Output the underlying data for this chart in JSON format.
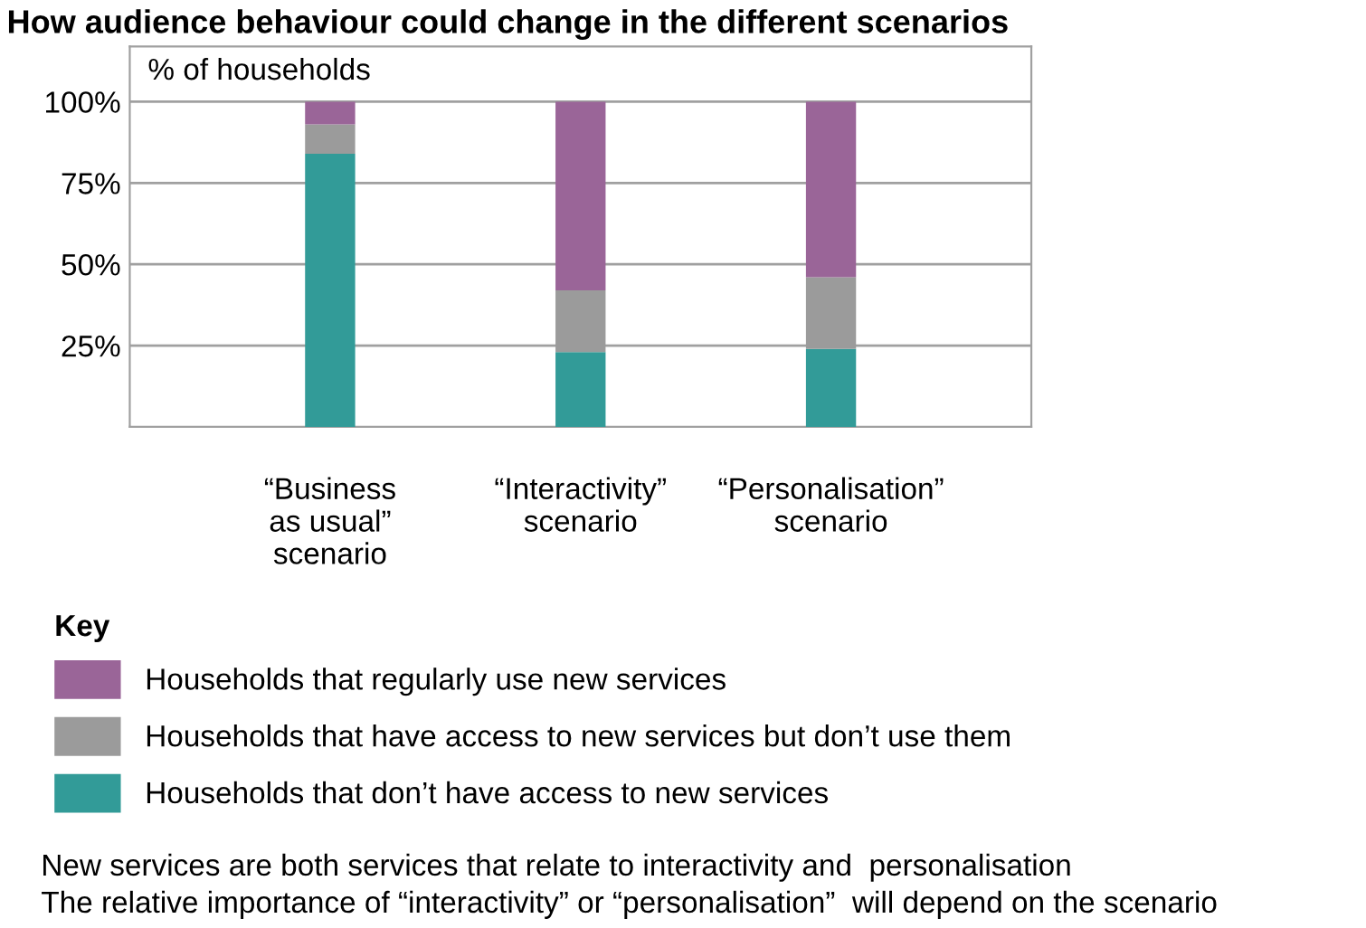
{
  "chart_data": {
    "type": "bar",
    "stacked": true,
    "title": "How audience behaviour could change in the different scenarios",
    "ylabel": "% of households",
    "legend_title": "Key",
    "categories": [
      "“Business\nas usual”\nscenario",
      "“Interactivity”\nscenario",
      "“Personalisation”\nscenario"
    ],
    "series": [
      {
        "name": "Households that don’t have access to new services",
        "color": "#329b98",
        "values": [
          84,
          23,
          24
        ]
      },
      {
        "name": "Households that have access to new services but don’t use them",
        "color": "#9b9b9b",
        "values": [
          9,
          19,
          22
        ]
      },
      {
        "name": "Households that regularly use new services",
        "color": "#9a6598",
        "values": [
          7,
          58,
          54
        ]
      }
    ],
    "ylim": [
      0,
      117
    ],
    "yticks": [
      {
        "value": 25,
        "label": "25%"
      },
      {
        "value": 50,
        "label": "50%"
      },
      {
        "value": 75,
        "label": "75%"
      },
      {
        "value": 100,
        "label": "100%"
      }
    ],
    "grid": "y",
    "legend": "bottom",
    "annotations": [
      "New services are both services that relate to interactivity and  personalisation",
      "The relative importance of “interactivity” or “personalisation”  will depend on the scenario"
    ]
  }
}
